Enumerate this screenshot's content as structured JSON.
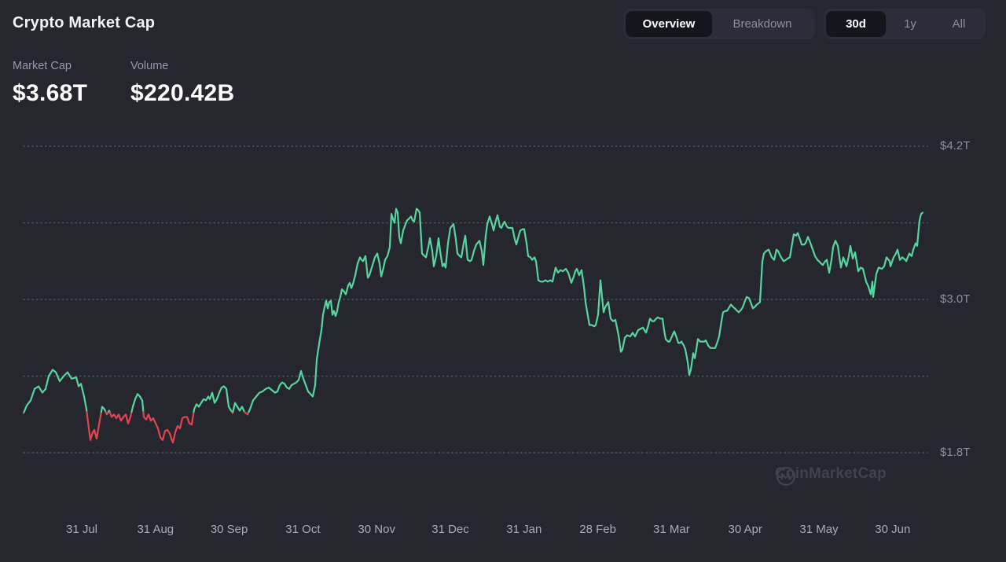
{
  "header": {
    "title": "Crypto Market Cap"
  },
  "stats": [
    {
      "label": "Market Cap",
      "value": "$3.68T"
    },
    {
      "label": "Volume",
      "value": "$220.42B"
    }
  ],
  "controls": {
    "view_toggle": [
      {
        "label": "Overview",
        "active": true
      },
      {
        "label": "Breakdown",
        "active": false
      }
    ],
    "range_toggle": [
      {
        "label": "30d",
        "active": true
      },
      {
        "label": "1y",
        "active": false
      },
      {
        "label": "All",
        "active": false
      }
    ]
  },
  "watermark": {
    "label": "CoinMarketCap",
    "icon": "coinmarketcap-logo"
  },
  "colors": {
    "up": "#57d4a0",
    "down": "#e2454f",
    "grid": "#565a66",
    "background": "#25262e",
    "text_primary": "#ffffff",
    "text_muted": "#959bab"
  },
  "chart_data": {
    "type": "line",
    "title": "Crypto Market Cap",
    "unit": "trillion USD",
    "legend": "none",
    "grid": "dotted horizontal",
    "grid_values": [
      4.2,
      3.6,
      3.0,
      2.4,
      1.8
    ],
    "y_ticks": [
      {
        "label": "$4.2T",
        "value": 4.2
      },
      {
        "label": "$3.0T",
        "value": 3.0
      },
      {
        "label": "$1.8T",
        "value": 1.8
      }
    ],
    "x_ticks": [
      "31 Jul",
      "31 Aug",
      "30 Sep",
      "31 Oct",
      "30 Nov",
      "31 Dec",
      "31 Jan",
      "28 Feb",
      "31 Mar",
      "30 Apr",
      "31 May",
      "30 Jun"
    ],
    "baseline": 2.12,
    "color_rule": "green above baseline, red below baseline",
    "last_value": 3.68,
    "points": [
      [
        30,
        2.11
      ],
      [
        34,
        2.17
      ],
      [
        39,
        2.21
      ],
      [
        44,
        2.3
      ],
      [
        49,
        2.32
      ],
      [
        54,
        2.27
      ],
      [
        58,
        2.3
      ],
      [
        62,
        2.4
      ],
      [
        67,
        2.45
      ],
      [
        71,
        2.43
      ],
      [
        76,
        2.36
      ],
      [
        81,
        2.4
      ],
      [
        86,
        2.43
      ],
      [
        91,
        2.38
      ],
      [
        97,
        2.39
      ],
      [
        100,
        2.32
      ],
      [
        103,
        2.34
      ],
      [
        107,
        2.24
      ],
      [
        110,
        2.14
      ],
      [
        113,
        1.99
      ],
      [
        115,
        1.9
      ],
      [
        118,
        1.96
      ],
      [
        120,
        1.98
      ],
      [
        123,
        1.91
      ],
      [
        126,
        2.02
      ],
      [
        130,
        2.16
      ],
      [
        133,
        2.14
      ],
      [
        136,
        2.1
      ],
      [
        139,
        2.13
      ],
      [
        142,
        2.08
      ],
      [
        145,
        2.1
      ],
      [
        148,
        2.07
      ],
      [
        151,
        2.1
      ],
      [
        154,
        2.05
      ],
      [
        157,
        2.08
      ],
      [
        160,
        2.1
      ],
      [
        163,
        2.03
      ],
      [
        166,
        2.08
      ],
      [
        169,
        2.16
      ],
      [
        172,
        2.22
      ],
      [
        175,
        2.26
      ],
      [
        178,
        2.24
      ],
      [
        181,
        2.21
      ],
      [
        183,
        2.08
      ],
      [
        186,
        2.06
      ],
      [
        189,
        2.1
      ],
      [
        192,
        2.05
      ],
      [
        195,
        2.07
      ],
      [
        198,
        2.03
      ],
      [
        201,
        1.99
      ],
      [
        204,
        1.92
      ],
      [
        207,
        1.9
      ],
      [
        210,
        1.97
      ],
      [
        213,
        1.98
      ],
      [
        216,
        1.95
      ],
      [
        218,
        1.91
      ],
      [
        220,
        1.88
      ],
      [
        223,
        1.96
      ],
      [
        226,
        2.01
      ],
      [
        229,
        1.99
      ],
      [
        232,
        2.07
      ],
      [
        235,
        2.08
      ],
      [
        238,
        2.08
      ],
      [
        241,
        2.03
      ],
      [
        244,
        2.02
      ],
      [
        247,
        2.14
      ],
      [
        250,
        2.18
      ],
      [
        253,
        2.16
      ],
      [
        256,
        2.19
      ],
      [
        259,
        2.22
      ],
      [
        262,
        2.21
      ],
      [
        265,
        2.24
      ],
      [
        267,
        2.22
      ],
      [
        270,
        2.27
      ],
      [
        273,
        2.19
      ],
      [
        276,
        2.22
      ],
      [
        279,
        2.27
      ],
      [
        282,
        2.31
      ],
      [
        285,
        2.32
      ],
      [
        288,
        2.3
      ],
      [
        291,
        2.16
      ],
      [
        293,
        2.14
      ],
      [
        296,
        2.11
      ],
      [
        299,
        2.19
      ],
      [
        302,
        2.16
      ],
      [
        305,
        2.13
      ],
      [
        308,
        2.16
      ],
      [
        311,
        2.12
      ],
      [
        315,
        2.1
      ],
      [
        318,
        2.14
      ],
      [
        322,
        2.21
      ],
      [
        326,
        2.24
      ],
      [
        330,
        2.27
      ],
      [
        334,
        2.28
      ],
      [
        338,
        2.3
      ],
      [
        342,
        2.31
      ],
      [
        346,
        2.29
      ],
      [
        350,
        2.27
      ],
      [
        353,
        2.28
      ],
      [
        356,
        2.33
      ],
      [
        359,
        2.35
      ],
      [
        362,
        2.34
      ],
      [
        365,
        2.31
      ],
      [
        368,
        2.3
      ],
      [
        371,
        2.33
      ],
      [
        374,
        2.34
      ],
      [
        377,
        2.35
      ],
      [
        380,
        2.37
      ],
      [
        383,
        2.44
      ],
      [
        386,
        2.38
      ],
      [
        389,
        2.33
      ],
      [
        392,
        2.28
      ],
      [
        395,
        2.26
      ],
      [
        398,
        2.24
      ],
      [
        401,
        2.33
      ],
      [
        403,
        2.53
      ],
      [
        405,
        2.61
      ],
      [
        407,
        2.69
      ],
      [
        409,
        2.76
      ],
      [
        411,
        2.88
      ],
      [
        413,
        2.94
      ],
      [
        415,
        2.99
      ],
      [
        417,
        2.93
      ],
      [
        419,
        2.98
      ],
      [
        421,
        2.99
      ],
      [
        423,
        2.88
      ],
      [
        425,
        2.91
      ],
      [
        427,
        2.87
      ],
      [
        429,
        2.91
      ],
      [
        431,
        2.98
      ],
      [
        433,
        3.02
      ],
      [
        435,
        3.08
      ],
      [
        438,
        3.06
      ],
      [
        440,
        3.04
      ],
      [
        443,
        3.11
      ],
      [
        445,
        3.13
      ],
      [
        447,
        3.09
      ],
      [
        449,
        3.12
      ],
      [
        452,
        3.19
      ],
      [
        455,
        3.28
      ],
      [
        458,
        3.33
      ],
      [
        460,
        3.31
      ],
      [
        462,
        3.3
      ],
      [
        465,
        3.34
      ],
      [
        468,
        3.17
      ],
      [
        470,
        3.19
      ],
      [
        473,
        3.25
      ],
      [
        477,
        3.33
      ],
      [
        480,
        3.36
      ],
      [
        483,
        3.28
      ],
      [
        485,
        3.18
      ],
      [
        488,
        3.25
      ],
      [
        490,
        3.31
      ],
      [
        493,
        3.34
      ],
      [
        496,
        3.41
      ],
      [
        498,
        3.67
      ],
      [
        500,
        3.63
      ],
      [
        502,
        3.6
      ],
      [
        504,
        3.71
      ],
      [
        506,
        3.68
      ],
      [
        508,
        3.49
      ],
      [
        510,
        3.44
      ],
      [
        513,
        3.54
      ],
      [
        516,
        3.59
      ],
      [
        518,
        3.62
      ],
      [
        520,
        3.63
      ],
      [
        523,
        3.65
      ],
      [
        525,
        3.62
      ],
      [
        527,
        3.61
      ],
      [
        530,
        3.71
      ],
      [
        532,
        3.7
      ],
      [
        534,
        3.68
      ],
      [
        537,
        3.36
      ],
      [
        540,
        3.34
      ],
      [
        542,
        3.33
      ],
      [
        545,
        3.41
      ],
      [
        547,
        3.48
      ],
      [
        550,
        3.38
      ],
      [
        552,
        3.26
      ],
      [
        555,
        3.34
      ],
      [
        557,
        3.43
      ],
      [
        558,
        3.48
      ],
      [
        560,
        3.38
      ],
      [
        563,
        3.26
      ],
      [
        565,
        3.28
      ],
      [
        567,
        3.25
      ],
      [
        570,
        3.44
      ],
      [
        573,
        3.56
      ],
      [
        577,
        3.59
      ],
      [
        580,
        3.47
      ],
      [
        582,
        3.36
      ],
      [
        585,
        3.34
      ],
      [
        587,
        3.33
      ],
      [
        590,
        3.44
      ],
      [
        592,
        3.5
      ],
      [
        595,
        3.31
      ],
      [
        598,
        3.3
      ],
      [
        600,
        3.31
      ],
      [
        603,
        3.38
      ],
      [
        606,
        3.43
      ],
      [
        610,
        3.46
      ],
      [
        613,
        3.38
      ],
      [
        615,
        3.27
      ],
      [
        618,
        3.5
      ],
      [
        620,
        3.59
      ],
      [
        623,
        3.65
      ],
      [
        626,
        3.59
      ],
      [
        628,
        3.54
      ],
      [
        631,
        3.62
      ],
      [
        633,
        3.66
      ],
      [
        636,
        3.57
      ],
      [
        638,
        3.56
      ],
      [
        640,
        3.59
      ],
      [
        642,
        3.61
      ],
      [
        645,
        3.57
      ],
      [
        647,
        3.56
      ],
      [
        650,
        3.56
      ],
      [
        652,
        3.56
      ],
      [
        655,
        3.47
      ],
      [
        657,
        3.43
      ],
      [
        660,
        3.5
      ],
      [
        662,
        3.54
      ],
      [
        665,
        3.55
      ],
      [
        667,
        3.55
      ],
      [
        670,
        3.44
      ],
      [
        672,
        3.34
      ],
      [
        675,
        3.33
      ],
      [
        677,
        3.31
      ],
      [
        680,
        3.33
      ],
      [
        682,
        3.3
      ],
      [
        685,
        3.15
      ],
      [
        688,
        3.14
      ],
      [
        691,
        3.14
      ],
      [
        694,
        3.15
      ],
      [
        697,
        3.14
      ],
      [
        700,
        3.15
      ],
      [
        703,
        3.14
      ],
      [
        707,
        3.25
      ],
      [
        710,
        3.21
      ],
      [
        713,
        3.23
      ],
      [
        716,
        3.22
      ],
      [
        720,
        3.24
      ],
      [
        723,
        3.21
      ],
      [
        727,
        3.13
      ],
      [
        730,
        3.18
      ],
      [
        732,
        3.22
      ],
      [
        734,
        3.24
      ],
      [
        737,
        3.19
      ],
      [
        740,
        3.23
      ],
      [
        743,
        3.1
      ],
      [
        745,
        2.98
      ],
      [
        748,
        2.87
      ],
      [
        750,
        2.8
      ],
      [
        753,
        2.8
      ],
      [
        756,
        2.79
      ],
      [
        758,
        2.8
      ],
      [
        761,
        2.88
      ],
      [
        764,
        3.15
      ],
      [
        766,
        3.02
      ],
      [
        768,
        2.9
      ],
      [
        770,
        2.94
      ],
      [
        772,
        2.96
      ],
      [
        774,
        2.98
      ],
      [
        777,
        2.85
      ],
      [
        780,
        2.83
      ],
      [
        783,
        2.84
      ],
      [
        787,
        2.72
      ],
      [
        790,
        2.59
      ],
      [
        792,
        2.61
      ],
      [
        795,
        2.7
      ],
      [
        798,
        2.72
      ],
      [
        802,
        2.71
      ],
      [
        805,
        2.74
      ],
      [
        808,
        2.71
      ],
      [
        812,
        2.76
      ],
      [
        815,
        2.77
      ],
      [
        818,
        2.78
      ],
      [
        820,
        2.76
      ],
      [
        822,
        2.74
      ],
      [
        825,
        2.8
      ],
      [
        827,
        2.85
      ],
      [
        830,
        2.83
      ],
      [
        832,
        2.83
      ],
      [
        835,
        2.85
      ],
      [
        837,
        2.86
      ],
      [
        840,
        2.85
      ],
      [
        843,
        2.85
      ],
      [
        845,
        2.76
      ],
      [
        847,
        2.69
      ],
      [
        850,
        2.67
      ],
      [
        852,
        2.67
      ],
      [
        855,
        2.71
      ],
      [
        857,
        2.74
      ],
      [
        858,
        2.75
      ],
      [
        861,
        2.7
      ],
      [
        863,
        2.66
      ],
      [
        865,
        2.66
      ],
      [
        867,
        2.67
      ],
      [
        870,
        2.64
      ],
      [
        872,
        2.61
      ],
      [
        875,
        2.51
      ],
      [
        877,
        2.41
      ],
      [
        879,
        2.45
      ],
      [
        882,
        2.58
      ],
      [
        884,
        2.54
      ],
      [
        886,
        2.61
      ],
      [
        888,
        2.69
      ],
      [
        891,
        2.67
      ],
      [
        893,
        2.67
      ],
      [
        896,
        2.67
      ],
      [
        898,
        2.68
      ],
      [
        901,
        2.64
      ],
      [
        904,
        2.62
      ],
      [
        907,
        2.62
      ],
      [
        910,
        2.62
      ],
      [
        913,
        2.67
      ],
      [
        915,
        2.71
      ],
      [
        918,
        2.83
      ],
      [
        920,
        2.9
      ],
      [
        923,
        2.91
      ],
      [
        925,
        2.91
      ],
      [
        928,
        2.94
      ],
      [
        930,
        2.96
      ],
      [
        933,
        2.94
      ],
      [
        935,
        2.93
      ],
      [
        938,
        2.91
      ],
      [
        940,
        2.9
      ],
      [
        943,
        2.92
      ],
      [
        945,
        2.94
      ],
      [
        948,
        2.99
      ],
      [
        950,
        3.02
      ],
      [
        953,
        3.01
      ],
      [
        955,
        2.98
      ],
      [
        958,
        2.93
      ],
      [
        960,
        2.94
      ],
      [
        963,
        2.96
      ],
      [
        967,
        2.98
      ],
      [
        970,
        3.3
      ],
      [
        972,
        3.36
      ],
      [
        975,
        3.38
      ],
      [
        978,
        3.39
      ],
      [
        980,
        3.36
      ],
      [
        982,
        3.33
      ],
      [
        985,
        3.31
      ],
      [
        988,
        3.39
      ],
      [
        990,
        3.38
      ],
      [
        993,
        3.34
      ],
      [
        997,
        3.3
      ],
      [
        1000,
        3.31
      ],
      [
        1002,
        3.32
      ],
      [
        1005,
        3.33
      ],
      [
        1008,
        3.44
      ],
      [
        1010,
        3.51
      ],
      [
        1013,
        3.5
      ],
      [
        1015,
        3.52
      ],
      [
        1018,
        3.47
      ],
      [
        1020,
        3.43
      ],
      [
        1023,
        3.43
      ],
      [
        1025,
        3.44
      ],
      [
        1028,
        3.49
      ],
      [
        1030,
        3.46
      ],
      [
        1033,
        3.41
      ],
      [
        1037,
        3.34
      ],
      [
        1040,
        3.31
      ],
      [
        1042,
        3.3
      ],
      [
        1045,
        3.28
      ],
      [
        1047,
        3.27
      ],
      [
        1050,
        3.3
      ],
      [
        1052,
        3.31
      ],
      [
        1055,
        3.21
      ],
      [
        1058,
        3.31
      ],
      [
        1060,
        3.41
      ],
      [
        1063,
        3.46
      ],
      [
        1066,
        3.42
      ],
      [
        1070,
        3.25
      ],
      [
        1073,
        3.33
      ],
      [
        1077,
        3.26
      ],
      [
        1080,
        3.34
      ],
      [
        1082,
        3.42
      ],
      [
        1085,
        3.32
      ],
      [
        1088,
        3.37
      ],
      [
        1092,
        3.22
      ],
      [
        1095,
        3.25
      ],
      [
        1098,
        3.24
      ],
      [
        1102,
        3.14
      ],
      [
        1105,
        3.1
      ],
      [
        1108,
        3.04
      ],
      [
        1110,
        3.14
      ],
      [
        1111,
        3.02
      ],
      [
        1115,
        3.2
      ],
      [
        1118,
        3.25
      ],
      [
        1122,
        3.24
      ],
      [
        1125,
        3.26
      ],
      [
        1128,
        3.33
      ],
      [
        1132,
        3.3
      ],
      [
        1133,
        3.26
      ],
      [
        1137,
        3.33
      ],
      [
        1140,
        3.36
      ],
      [
        1142,
        3.39
      ],
      [
        1145,
        3.31
      ],
      [
        1148,
        3.33
      ],
      [
        1152,
        3.31
      ],
      [
        1153,
        3.3
      ],
      [
        1157,
        3.36
      ],
      [
        1160,
        3.34
      ],
      [
        1162,
        3.39
      ],
      [
        1165,
        3.44
      ],
      [
        1167,
        3.42
      ],
      [
        1168,
        3.49
      ],
      [
        1170,
        3.62
      ],
      [
        1172,
        3.67
      ],
      [
        1174,
        3.68
      ]
    ]
  }
}
